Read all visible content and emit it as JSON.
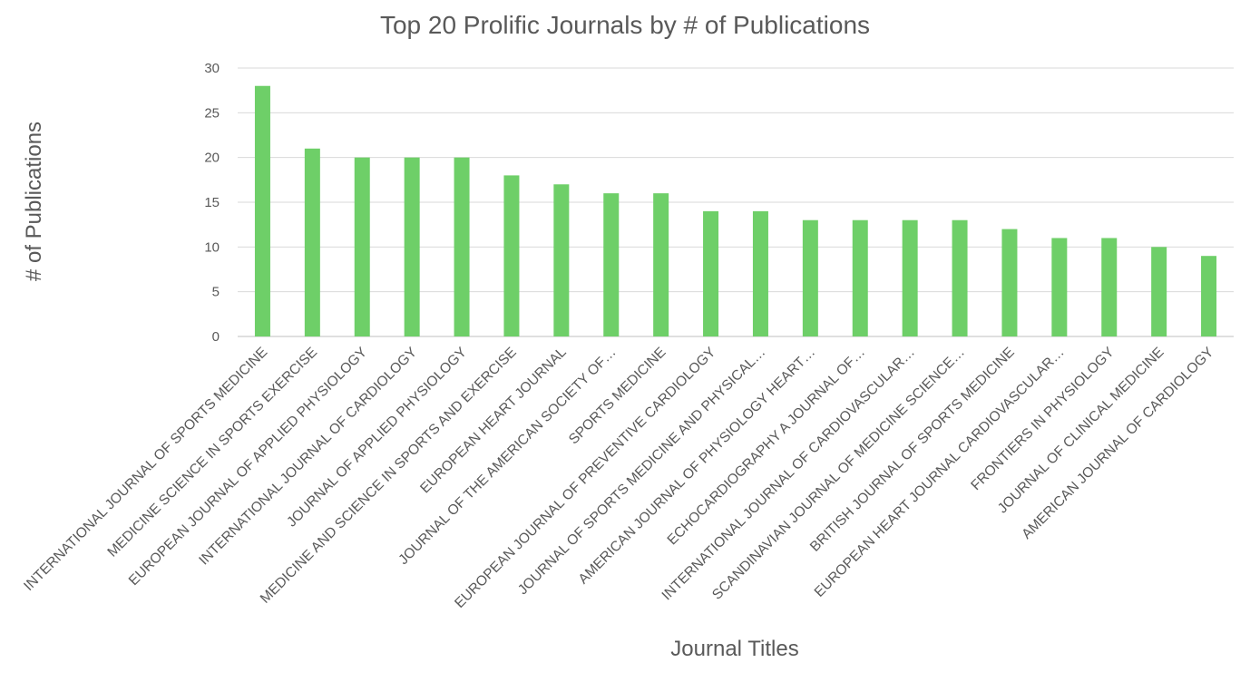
{
  "chart_data": {
    "type": "bar",
    "title": "Top 20 Prolific Journals by # of Publications",
    "xlabel": "Journal Titles",
    "ylabel": "# of Publications",
    "ylim": [
      0,
      30
    ],
    "yticks": [
      0,
      5,
      10,
      15,
      20,
      25,
      30
    ],
    "grid": true,
    "bar_color": "#6ECF68",
    "categories": [
      "INTERNATIONAL JOURNAL OF SPORTS MEDICINE",
      "MEDICINE SCIENCE IN SPORTS EXERCISE",
      "EUROPEAN JOURNAL OF APPLIED PHYSIOLOGY",
      "INTERNATIONAL JOURNAL OF CARDIOLOGY",
      "JOURNAL OF APPLIED PHYSIOLOGY",
      "MEDICINE AND SCIENCE IN SPORTS AND EXERCISE",
      "EUROPEAN HEART JOURNAL",
      "JOURNAL OF THE AMERICAN SOCIETY OF…",
      "SPORTS MEDICINE",
      "EUROPEAN JOURNAL OF PREVENTIVE CARDIOLOGY",
      "JOURNAL OF SPORTS MEDICINE AND PHYSICAL…",
      "AMERICAN JOURNAL OF PHYSIOLOGY HEART…",
      "ECHOCARDIOGRAPHY A JOURNAL OF…",
      "INTERNATIONAL JOURNAL OF CARDIOVASCULAR…",
      "SCANDINAVIAN JOURNAL OF MEDICINE SCIENCE…",
      "BRITISH JOURNAL OF SPORTS MEDICINE",
      "EUROPEAN HEART JOURNAL CARDIOVASCULAR…",
      "FRONTIERS IN PHYSIOLOGY",
      "JOURNAL OF CLINICAL MEDICINE",
      "AMERICAN JOURNAL OF CARDIOLOGY"
    ],
    "values": [
      28,
      21,
      20,
      20,
      20,
      18,
      17,
      16,
      16,
      14,
      14,
      13,
      13,
      13,
      13,
      12,
      11,
      11,
      10,
      9
    ]
  }
}
